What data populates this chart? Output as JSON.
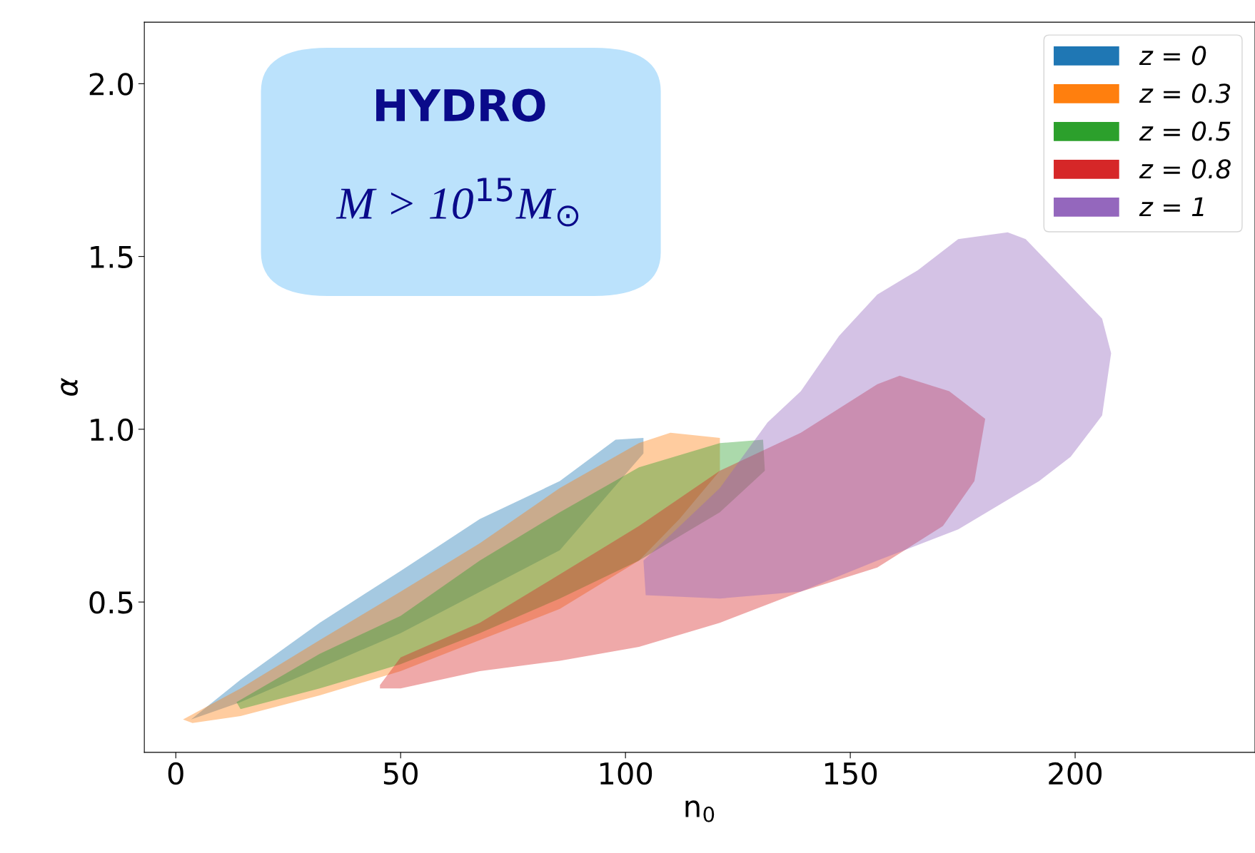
{
  "chart_data": {
    "type": "area",
    "xlabel": "n$_{0}$",
    "ylabel": "α",
    "xlim": [
      -7,
      240
    ],
    "ylim": [
      0.065,
      2.178
    ],
    "xticks": [
      0,
      50,
      100,
      150,
      200
    ],
    "yticks": [
      {
        "value": 0.5,
        "label": "0.5"
      },
      {
        "value": 1.0,
        "label": "1.0"
      },
      {
        "value": 1.5,
        "label": "1.5"
      },
      {
        "value": 2.0,
        "label": "2.0"
      }
    ],
    "grid": false,
    "legend": "top right",
    "annotations": [
      "HYDRO",
      "M > 10$^{15}$M$_{⊙}$"
    ],
    "series": [
      {
        "name": "z = 0",
        "color": "#1f77b4",
        "x": [
          3.4,
          14.4,
          32,
          50,
          67.6,
          85.4,
          97.8,
          104,
          104,
          85.4,
          50,
          14.4,
          3.4
        ],
        "values": [
          0.16,
          0.275,
          0.44,
          0.59,
          0.74,
          0.85,
          0.97,
          0.975,
          0.93,
          0.65,
          0.41,
          0.21,
          0.16
        ]
      },
      {
        "name": "z = 0.3",
        "color": "#ff7f0e",
        "x": [
          1.6,
          14.4,
          32,
          50,
          67.6,
          85.4,
          103,
          110,
          121,
          121,
          112,
          103,
          85.4,
          67.6,
          50,
          32,
          14.4,
          3.7
        ],
        "values": [
          0.16,
          0.25,
          0.39,
          0.53,
          0.67,
          0.83,
          0.96,
          0.99,
          0.975,
          0.88,
          0.74,
          0.62,
          0.48,
          0.39,
          0.3,
          0.23,
          0.17,
          0.15
        ]
      },
      {
        "name": "z = 0.5",
        "color": "#2ca02c",
        "x": [
          13.5,
          32,
          50,
          67.6,
          85.4,
          103,
          121,
          130.6,
          131,
          121,
          112,
          103,
          85.4,
          67.6,
          50,
          32,
          14.4
        ],
        "values": [
          0.21,
          0.35,
          0.46,
          0.62,
          0.76,
          0.89,
          0.96,
          0.97,
          0.88,
          0.76,
          0.69,
          0.62,
          0.51,
          0.41,
          0.32,
          0.25,
          0.19
        ]
      },
      {
        "name": "z = 0.8",
        "color": "#d62728",
        "x": [
          45.4,
          50,
          67.6,
          85.4,
          103,
          121,
          139,
          156,
          161,
          172,
          180,
          177.6,
          170.6,
          156,
          139,
          121,
          103,
          85.4,
          67.6,
          50,
          45.4
        ],
        "values": [
          0.26,
          0.34,
          0.44,
          0.58,
          0.72,
          0.88,
          0.99,
          1.13,
          1.155,
          1.11,
          1.03,
          0.85,
          0.72,
          0.6,
          0.53,
          0.44,
          0.37,
          0.33,
          0.3,
          0.25,
          0.25
        ]
      },
      {
        "name": "z = 1",
        "color": "#9467bd",
        "x": [
          104,
          121,
          131.6,
          139,
          147.5,
          156,
          165,
          174,
          185,
          189,
          206,
          208,
          206,
          199,
          192,
          174,
          156,
          139,
          121,
          104.5
        ],
        "values": [
          0.62,
          0.83,
          1.02,
          1.11,
          1.27,
          1.39,
          1.46,
          1.55,
          1.57,
          1.55,
          1.32,
          1.22,
          1.04,
          0.92,
          0.85,
          0.71,
          0.62,
          0.53,
          0.51,
          0.52
        ]
      }
    ]
  }
}
